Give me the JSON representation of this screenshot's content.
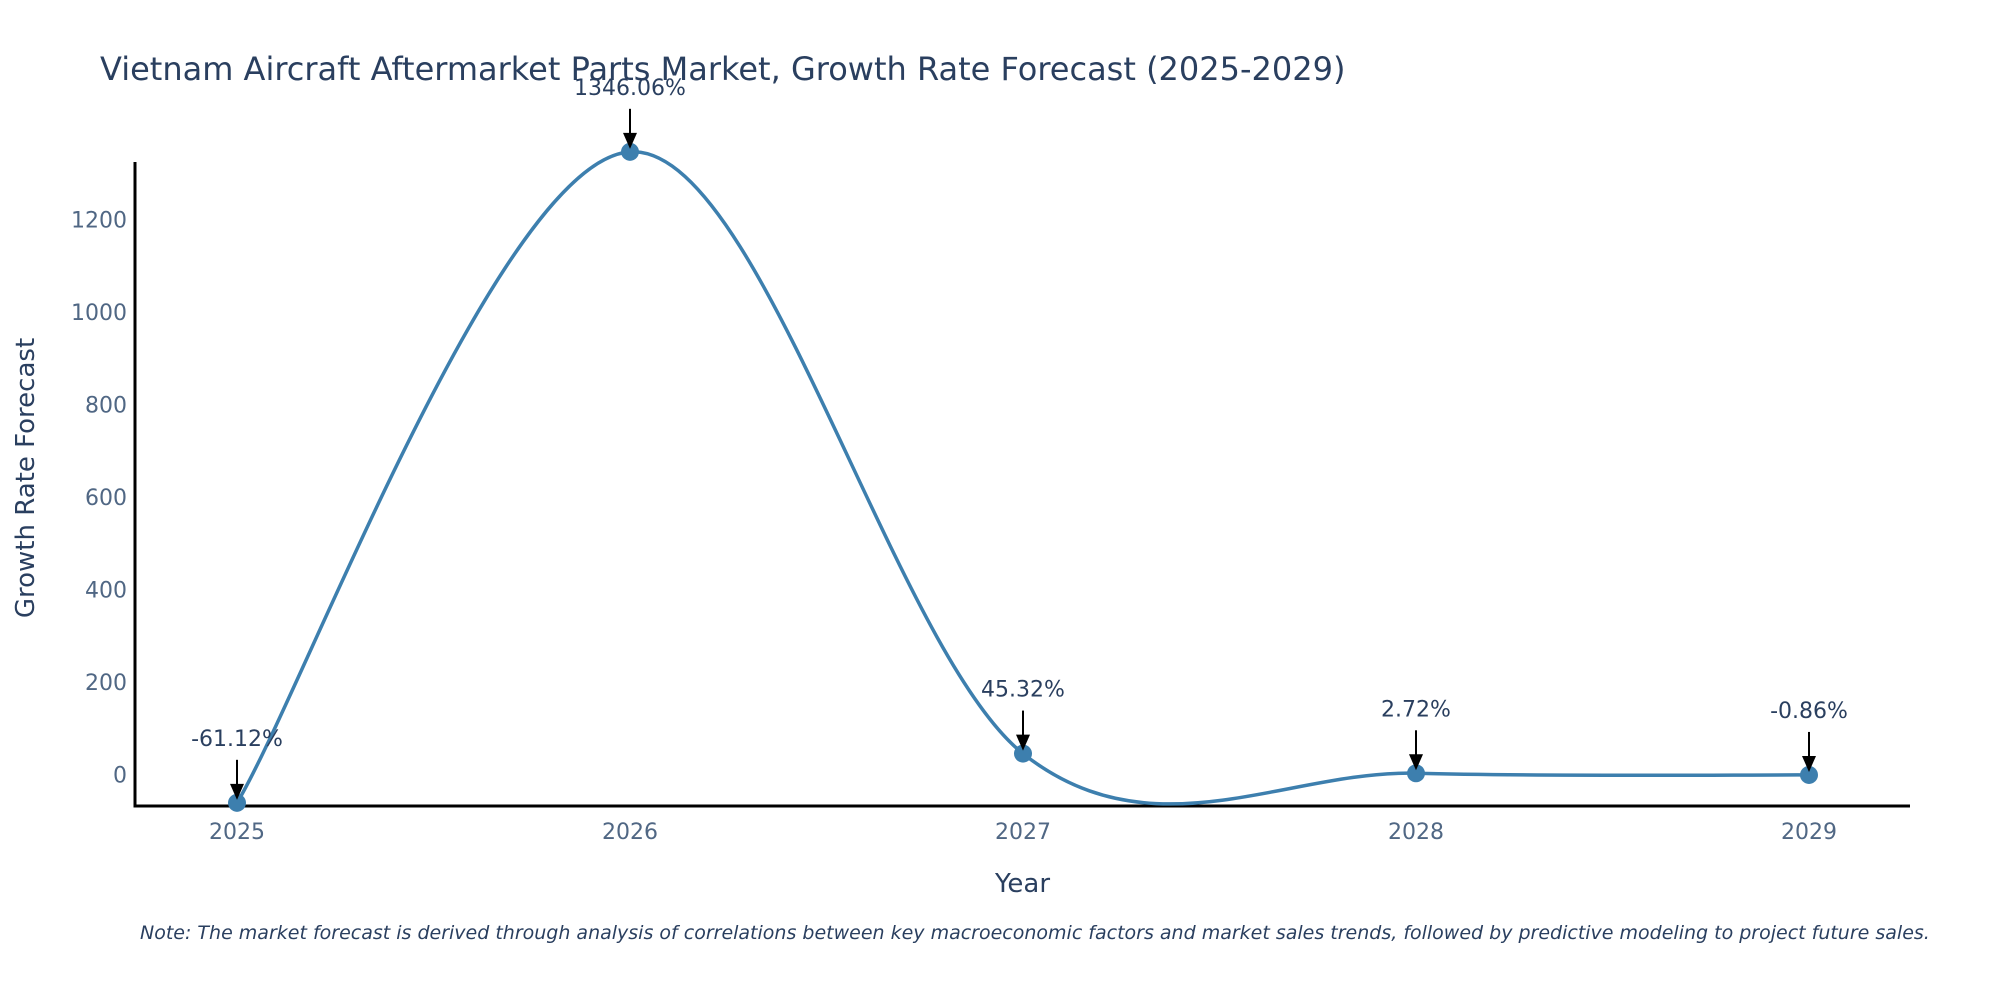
{
  "chart": {
    "title": "Vietnam Aircraft Aftermarket Parts Market, Growth Rate Forecast (2025-2029)",
    "note": "Note: The market forecast is derived through analysis of correlations between key macroeconomic factors and market sales trends, followed by predictive modeling to project future sales."
  },
  "chart_data": {
    "type": "line",
    "title": "Vietnam Aircraft Aftermarket Parts Market, Growth Rate Forecast (2025-2029)",
    "xlabel": "Year",
    "ylabel": "Growth Rate Forecast",
    "categories": [
      "2025",
      "2026",
      "2027",
      "2028",
      "2029"
    ],
    "values": [
      -61.12,
      1346.06,
      45.32,
      2.72,
      -0.86
    ],
    "labels": [
      "-61.12%",
      "1346.06%",
      "45.32%",
      "2.72%",
      "-0.86%"
    ],
    "yticks": [
      0,
      200,
      400,
      600,
      800,
      1000,
      1200
    ],
    "ytick_labels": [
      "0",
      "200",
      "400",
      "600",
      "800",
      "1000",
      "1200"
    ],
    "ylim": [
      -68,
      1350
    ],
    "grid": false,
    "line_shape": "spline",
    "colors": {
      "line": "#3d7fae",
      "marker": "#3d7fae",
      "axis": "#000000",
      "arrow": "#000000"
    }
  }
}
